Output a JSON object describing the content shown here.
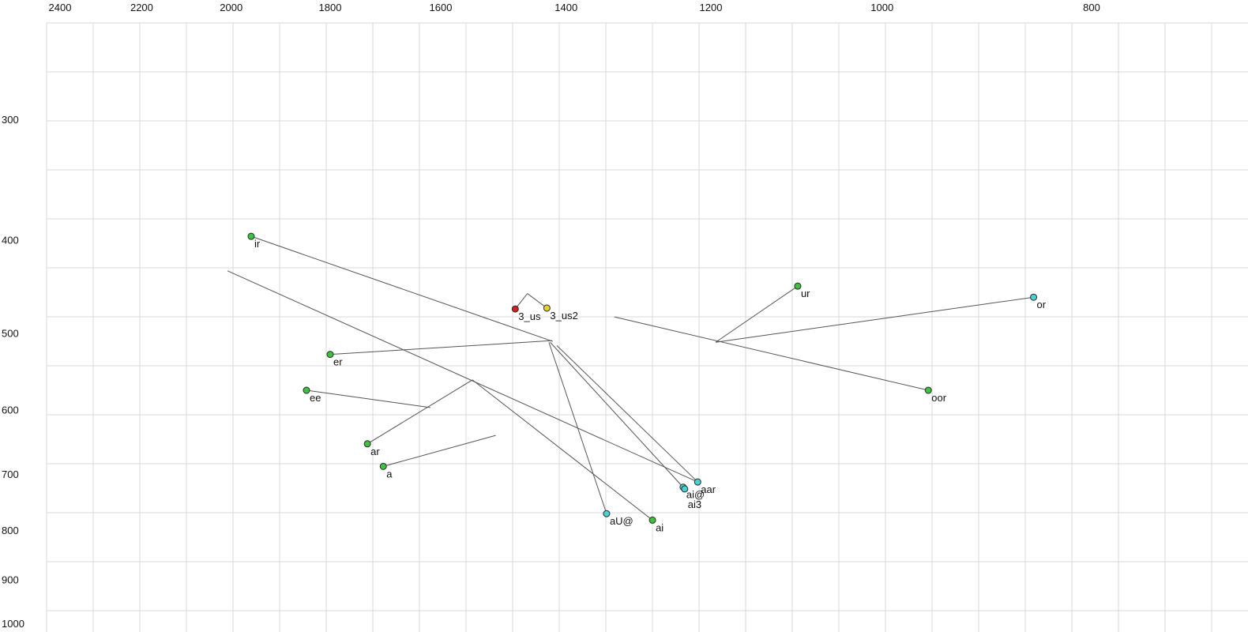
{
  "chart_data": {
    "type": "scatter",
    "title": "",
    "description": "Vowel formant plot (F2 horizontal reversed log scale, F1 vertical reversed log scale) with labeled vowel points and trajectory lines",
    "x_axis": {
      "label": "",
      "ticks": [
        2400,
        2200,
        2000,
        1800,
        1600,
        1400,
        1200,
        1000,
        800
      ],
      "scale": "log",
      "reversed": true,
      "position": "top",
      "range": [
        2550,
        700
      ]
    },
    "y_axis": {
      "label": "",
      "ticks": [
        300,
        400,
        500,
        600,
        700,
        800,
        900,
        1000
      ],
      "scale": "log",
      "reversed": true,
      "position": "left",
      "range": [
        240,
        1020
      ]
    },
    "grid": true,
    "points": [
      {
        "label": "ir",
        "f2": 1958,
        "f1": 396,
        "color_key": "green"
      },
      {
        "label": "ur",
        "f2": 1094,
        "f1": 446,
        "color_key": "green"
      },
      {
        "label": "or",
        "f2": 851,
        "f1": 458,
        "color_key": "cyan"
      },
      {
        "label": "3_us",
        "f2": 1478,
        "f1": 471,
        "color_key": "red"
      },
      {
        "label": "3_us2",
        "f2": 1429,
        "f1": 470,
        "color_key": "yellow"
      },
      {
        "label": "er",
        "f2": 1800,
        "f1": 525,
        "color_key": "green"
      },
      {
        "label": "ee",
        "f2": 1846,
        "f1": 572,
        "color_key": "green"
      },
      {
        "label": "oor",
        "f2": 952,
        "f1": 572,
        "color_key": "green"
      },
      {
        "label": "ar",
        "f2": 1730,
        "f1": 650,
        "color_key": "green"
      },
      {
        "label": "a",
        "f2": 1701,
        "f1": 686,
        "color_key": "green"
      },
      {
        "label": "aar",
        "f2": 1217,
        "f1": 712,
        "color_key": "cyan"
      },
      {
        "label": "ai@",
        "f2": 1236,
        "f1": 721,
        "color_key": "cyan"
      },
      {
        "label": "ai3",
        "f2": 1234,
        "f1": 724,
        "color_key": "cyan",
        "label_dy": 24
      },
      {
        "label": "aU@",
        "f2": 1341,
        "f1": 768,
        "color_key": "cyan"
      },
      {
        "label": "ai",
        "f2": 1277,
        "f1": 780,
        "color_key": "green"
      }
    ],
    "trajectories": [
      {
        "name": "ir-to-schwa",
        "from": [
          1958,
          396
        ],
        "to": [
          1420,
          509
        ]
      },
      {
        "name": "long-diagonal",
        "from": [
          2008,
          430
        ],
        "to": [
          1217,
          712
        ]
      },
      {
        "name": "er-to-schwa",
        "from": [
          1800,
          525
        ],
        "to": [
          1421,
          508
        ]
      },
      {
        "name": "ur-to-center",
        "from": [
          1094,
          446
        ],
        "to": [
          1194,
          510
        ]
      },
      {
        "name": "or-to-center",
        "from": [
          851,
          458
        ],
        "to": [
          1194,
          510
        ]
      },
      {
        "name": "oor-to-center",
        "from": [
          952,
          572
        ],
        "to": [
          1330,
          480
        ]
      },
      {
        "name": "3_us-apex",
        "from": [
          1478,
          471
        ],
        "to": [
          1459,
          454
        ]
      },
      {
        "name": "3_us2-apex",
        "from": [
          1429,
          470
        ],
        "to": [
          1459,
          454
        ]
      },
      {
        "name": "ai@-to-schwa",
        "from": [
          1236,
          721
        ],
        "to": [
          1424,
          510
        ]
      },
      {
        "name": "aar-to-schwa",
        "from": [
          1217,
          712
        ],
        "to": [
          1414,
          514
        ]
      },
      {
        "name": "aU@-to-schwa",
        "from": [
          1341,
          768
        ],
        "to": [
          1426,
          510
        ]
      },
      {
        "name": "ai-glide",
        "from": [
          1277,
          780
        ],
        "to": [
          1547,
          558
        ]
      },
      {
        "name": "ar-glide",
        "from": [
          1730,
          650
        ],
        "to": [
          1547,
          558
        ]
      },
      {
        "name": "ee-glide",
        "from": [
          1846,
          572
        ],
        "to": [
          1618,
          596
        ]
      },
      {
        "name": "a-glide",
        "from": [
          1701,
          686
        ],
        "to": [
          1509,
          637
        ]
      }
    ],
    "colors": {
      "green": "#3cc23c",
      "cyan": "#4ad0d0",
      "red": "#d42020",
      "yellow": "#e8d224",
      "dot_stroke": "#2a2a2a",
      "line": "#555555",
      "grid": "#d9d9d9",
      "text": "#111111",
      "background": "#ffffff"
    }
  }
}
